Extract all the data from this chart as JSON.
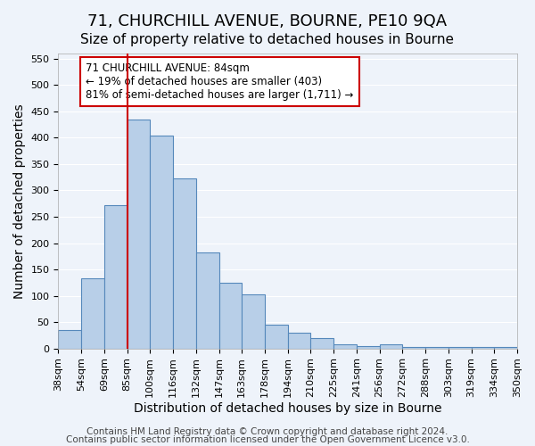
{
  "title": "71, CHURCHILL AVENUE, BOURNE, PE10 9QA",
  "subtitle": "Size of property relative to detached houses in Bourne",
  "xlabel": "Distribution of detached houses by size in Bourne",
  "ylabel": "Number of detached properties",
  "bar_labels": [
    "38sqm",
    "54sqm",
    "69sqm",
    "85sqm",
    "100sqm",
    "116sqm",
    "132sqm",
    "147sqm",
    "163sqm",
    "178sqm",
    "194sqm",
    "210sqm",
    "225sqm",
    "241sqm",
    "256sqm",
    "272sqm",
    "288sqm",
    "303sqm",
    "319sqm",
    "334sqm",
    "350sqm"
  ],
  "bar_values": [
    35,
    133,
    272,
    435,
    405,
    323,
    182,
    125,
    103,
    45,
    30,
    20,
    8,
    5,
    8,
    3,
    2,
    2,
    2,
    3
  ],
  "bar_color": "#b8cfe8",
  "bar_edge_color": "#5588bb",
  "vline_x": 3,
  "vline_color": "#cc0000",
  "ylim": [
    0,
    560
  ],
  "yticks": [
    0,
    50,
    100,
    150,
    200,
    250,
    300,
    350,
    400,
    450,
    500,
    550
  ],
  "annotation_box_text": "71 CHURCHILL AVENUE: 84sqm\n← 19% of detached houses are smaller (403)\n81% of semi-detached houses are larger (1,711) →",
  "footer_line1": "Contains HM Land Registry data © Crown copyright and database right 2024.",
  "footer_line2": "Contains public sector information licensed under the Open Government Licence v3.0.",
  "background_color": "#eef3fa",
  "grid_color": "#ffffff",
  "title_fontsize": 13,
  "subtitle_fontsize": 11,
  "axis_label_fontsize": 10,
  "tick_fontsize": 8,
  "footer_fontsize": 7.5
}
